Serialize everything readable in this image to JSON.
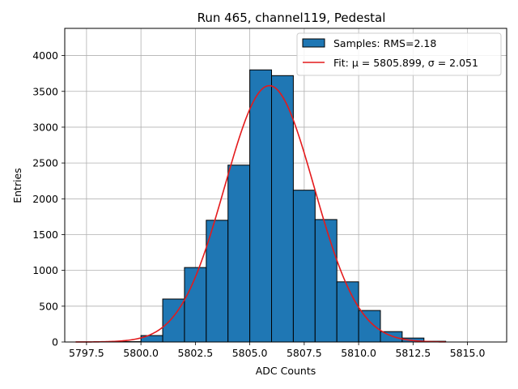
{
  "chart_data": {
    "type": "bar",
    "title": "Run 465, channel119, Pedestal",
    "xlabel": "ADC Counts",
    "ylabel": "Entries",
    "xlim": [
      5796.5,
      5816.8
    ],
    "ylim": [
      0,
      4380
    ],
    "grid": true,
    "legend_placement": "top-right",
    "bar_color": "#1f77b4",
    "fit_color": "#e41a1c",
    "xticks": [
      5797.5,
      5800.0,
      5802.5,
      5805.0,
      5807.5,
      5810.0,
      5812.5,
      5815.0
    ],
    "xtick_labels": [
      "5797.5",
      "5800.0",
      "5802.5",
      "5805.0",
      "5807.5",
      "5810.0",
      "5812.5",
      "5815.0"
    ],
    "yticks": [
      0,
      500,
      1000,
      1500,
      2000,
      2500,
      3000,
      3500,
      4000
    ],
    "ytick_labels": [
      "0",
      "500",
      "1000",
      "1500",
      "2000",
      "2500",
      "3000",
      "3500",
      "4000"
    ],
    "bins": [
      {
        "start": 5799,
        "end": 5800,
        "value": 5
      },
      {
        "start": 5800,
        "end": 5801,
        "value": 90
      },
      {
        "start": 5801,
        "end": 5802,
        "value": 600
      },
      {
        "start": 5802,
        "end": 5803,
        "value": 1040
      },
      {
        "start": 5803,
        "end": 5804,
        "value": 1700
      },
      {
        "start": 5804,
        "end": 5805,
        "value": 2470
      },
      {
        "start": 5805,
        "end": 5806,
        "value": 3800
      },
      {
        "start": 5806,
        "end": 5807,
        "value": 3720
      },
      {
        "start": 5807,
        "end": 5808,
        "value": 2120
      },
      {
        "start": 5808,
        "end": 5809,
        "value": 1710
      },
      {
        "start": 5809,
        "end": 5810,
        "value": 840
      },
      {
        "start": 5810,
        "end": 5811,
        "value": 440
      },
      {
        "start": 5811,
        "end": 5812,
        "value": 145
      },
      {
        "start": 5812,
        "end": 5813,
        "value": 55
      },
      {
        "start": 5813,
        "end": 5814,
        "value": 10
      }
    ],
    "series": [
      {
        "name": "Samples: RMS=2.18",
        "type": "histogram"
      },
      {
        "name": "Fit: μ = 5805.899, σ = 2.051",
        "type": "line",
        "mu": 5805.899,
        "sigma": 2.051,
        "peak": 3580,
        "x_range": [
          5797.0,
          5814.0
        ]
      }
    ]
  }
}
